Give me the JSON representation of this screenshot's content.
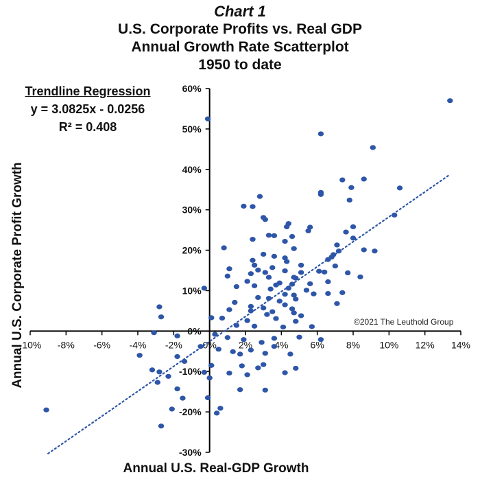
{
  "header": {
    "chart_no": "Chart 1",
    "line1": "U.S. Corporate Profits vs. Real GDP",
    "line2": "Annual Growth Rate Scatterplot",
    "line3": "1950 to date"
  },
  "regression": {
    "heading": "Trendline Regression",
    "equation": "y = 3.0825x - 0.0256",
    "r2": "R² = 0.408"
  },
  "credit": "©2021 The Leuthold Group",
  "colors": {
    "points": "#2e56a8",
    "trendline": "#2e56a8",
    "axis": "#000000"
  },
  "chart_data": {
    "type": "scatter",
    "xlabel": "Annual U.S. Real-GDP Growth",
    "ylabel": "Annual U.S. Corporate Profit Growth",
    "xlim": [
      -10,
      14
    ],
    "ylim": [
      -30,
      60
    ],
    "x_ticks": [
      -10,
      -8,
      -6,
      -4,
      -2,
      0,
      2,
      4,
      6,
      8,
      10,
      12,
      14
    ],
    "y_ticks": [
      -30,
      -20,
      -10,
      0,
      10,
      20,
      30,
      40,
      50,
      60
    ],
    "x_tick_labels": [
      "-10%",
      "-8%",
      "-6%",
      "-4%",
      "-2%",
      "0%",
      "2%",
      "4%",
      "6%",
      "8%",
      "10%",
      "12%",
      "14%"
    ],
    "y_tick_labels": [
      "-30%",
      "-20%",
      "-10%",
      "0%",
      "10%",
      "20%",
      "30%",
      "40%",
      "50%",
      "60%"
    ],
    "grid": false,
    "trendline": {
      "type": "linear",
      "slope": 3.0825,
      "intercept": -0.0256,
      "x_range": [
        -9,
        13.4
      ],
      "style": "dotted"
    },
    "points": [
      [
        13.4,
        57
      ],
      [
        -0.1,
        52.5
      ],
      [
        6.2,
        48.8
      ],
      [
        9.1,
        45.4
      ],
      [
        10.6,
        35.4
      ],
      [
        8.6,
        37.6
      ],
      [
        7.4,
        37.4
      ],
      [
        7.9,
        35.5
      ],
      [
        6.2,
        34.3
      ],
      [
        6.2,
        33.8
      ],
      [
        7.8,
        32.4
      ],
      [
        1.9,
        30.9
      ],
      [
        2.4,
        30.8
      ],
      [
        2.8,
        33.3
      ],
      [
        10.3,
        28.7
      ],
      [
        8,
        25.8
      ],
      [
        7.6,
        24.5
      ],
      [
        5.6,
        25.7
      ],
      [
        5.5,
        24.8
      ],
      [
        3,
        28.1
      ],
      [
        3.1,
        27.6
      ],
      [
        4.4,
        26.6
      ],
      [
        4.3,
        25.8
      ],
      [
        8,
        23
      ],
      [
        3.3,
        23.7
      ],
      [
        3.6,
        23.6
      ],
      [
        2.4,
        22.7
      ],
      [
        4.6,
        23.4
      ],
      [
        4.2,
        22.2
      ],
      [
        7.1,
        21.3
      ],
      [
        4.7,
        20.4
      ],
      [
        0.8,
        20.6
      ],
      [
        9.2,
        19.8
      ],
      [
        8.6,
        20.1
      ],
      [
        7.2,
        19.8
      ],
      [
        6.9,
        18.9
      ],
      [
        6.8,
        18.3
      ],
      [
        6.6,
        17.7
      ],
      [
        7,
        16.1
      ],
      [
        3,
        19
      ],
      [
        3.6,
        18.5
      ],
      [
        4.2,
        18.1
      ],
      [
        2.4,
        17.5
      ],
      [
        4.3,
        17.2
      ],
      [
        5.1,
        16.3
      ],
      [
        2.5,
        16.3
      ],
      [
        3.5,
        15.7
      ],
      [
        1.1,
        15.4
      ],
      [
        2.7,
        15.1
      ],
      [
        4.2,
        14.9
      ],
      [
        3.1,
        14.5
      ],
      [
        6.4,
        14.6
      ],
      [
        7.7,
        14.4
      ],
      [
        6.1,
        14.8
      ],
      [
        5.1,
        14.5
      ],
      [
        2.3,
        14.2
      ],
      [
        4.7,
        13.3
      ],
      [
        1,
        13.6
      ],
      [
        8.4,
        13.4
      ],
      [
        3.3,
        13.3
      ],
      [
        4.8,
        13.1
      ],
      [
        2.1,
        12.3
      ],
      [
        3.9,
        11.9
      ],
      [
        5.6,
        11.7
      ],
      [
        6.6,
        12.2
      ],
      [
        4.6,
        11.6
      ],
      [
        3.7,
        11.4
      ],
      [
        2.5,
        11.2
      ],
      [
        1.5,
        11
      ],
      [
        4.4,
        10.6
      ],
      [
        5.4,
        10.1
      ],
      [
        3.4,
        10.4
      ],
      [
        5.8,
        9.2
      ],
      [
        4.2,
        9.1
      ],
      [
        6.6,
        9.3
      ],
      [
        4.7,
        8.9
      ],
      [
        2.7,
        8.3
      ],
      [
        3.3,
        8.1
      ],
      [
        4.8,
        7.9
      ],
      [
        7.4,
        9.5
      ],
      [
        3.9,
        7.4
      ],
      [
        1.4,
        7.1
      ],
      [
        7.1,
        6.8
      ],
      [
        4.2,
        6.5
      ],
      [
        2.3,
        6.1
      ],
      [
        3,
        5.7
      ],
      [
        4.6,
        5.5
      ],
      [
        1.1,
        5.3
      ],
      [
        2.3,
        5
      ],
      [
        3.5,
        4.8
      ],
      [
        4.7,
        4.5
      ],
      [
        3.2,
        4.1
      ],
      [
        5.1,
        3.8
      ],
      [
        0.7,
        3.2
      ],
      [
        3.7,
        3.1
      ],
      [
        2.1,
        2.6
      ],
      [
        4.8,
        2.4
      ],
      [
        -2.8,
        6
      ],
      [
        -2.7,
        3.5
      ],
      [
        -0.3,
        10.6
      ],
      [
        0.1,
        3.3
      ],
      [
        1.5,
        1.4
      ],
      [
        2.5,
        1.2
      ],
      [
        4.1,
        1
      ],
      [
        5.7,
        1.1
      ],
      [
        -3.1,
        -0.4
      ],
      [
        -1.8,
        -1.2
      ],
      [
        0.3,
        -0.8
      ],
      [
        1,
        -1.6
      ],
      [
        1.9,
        -2.1
      ],
      [
        3.6,
        -1.8
      ],
      [
        5,
        -1.5
      ],
      [
        6.2,
        -2.1
      ],
      [
        2.9,
        -2.8
      ],
      [
        3.6,
        -3.8
      ],
      [
        -0.5,
        -3.8
      ],
      [
        0.5,
        -4.5
      ],
      [
        2.3,
        -4.7
      ],
      [
        1.7,
        -5.7
      ],
      [
        1.3,
        -5.1
      ],
      [
        3.1,
        -5.5
      ],
      [
        4.5,
        -5.7
      ],
      [
        -3.9,
        -6
      ],
      [
        -1.8,
        -6.3
      ],
      [
        -1.4,
        -7.5
      ],
      [
        0.1,
        -8.5
      ],
      [
        1.8,
        -8.6
      ],
      [
        3,
        -8.3
      ],
      [
        2.7,
        -9.1
      ],
      [
        4.8,
        -9.2
      ],
      [
        -3.2,
        -9.6
      ],
      [
        -2.8,
        -10.1
      ],
      [
        -0.3,
        -10.2
      ],
      [
        1.1,
        -10.4
      ],
      [
        2.1,
        -10.8
      ],
      [
        4.2,
        -10.3
      ],
      [
        -2.3,
        -11.2
      ],
      [
        0,
        -11.6
      ],
      [
        -2.9,
        -12.7
      ],
      [
        -1.8,
        -14.3
      ],
      [
        1.7,
        -14.5
      ],
      [
        3.1,
        -14.6
      ],
      [
        -1.5,
        -16.6
      ],
      [
        -0.1,
        -16.5
      ],
      [
        0.6,
        -19.1
      ],
      [
        -2.1,
        -19.3
      ],
      [
        -9.1,
        -19.5
      ],
      [
        0.4,
        -20.3
      ],
      [
        -2.7,
        -23.5
      ]
    ]
  }
}
